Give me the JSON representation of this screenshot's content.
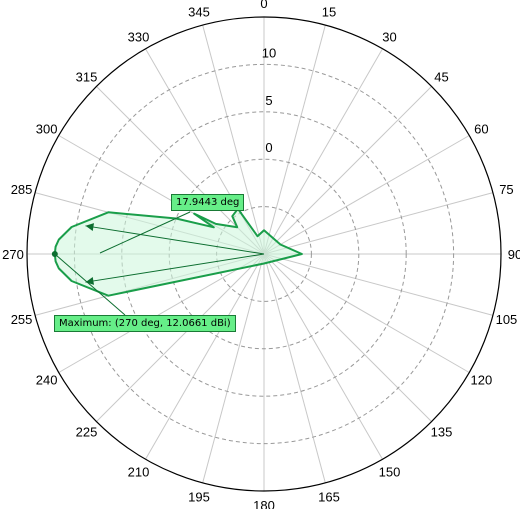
{
  "chart_data": {
    "type": "polar",
    "angle_ticks": [
      "0",
      "15",
      "30",
      "45",
      "60",
      "75",
      "90",
      "105",
      "120",
      "135",
      "150",
      "165",
      "180",
      "195",
      "210",
      "225",
      "240",
      "255",
      "270",
      "285",
      "300",
      "315",
      "330",
      "345"
    ],
    "ring_labels": [
      "0",
      "5",
      "10"
    ],
    "rlim": [
      -10,
      15
    ],
    "units": "dBi",
    "series": [
      {
        "theta": [
          0,
          60,
          90,
          180,
          255,
          262,
          266,
          268,
          270,
          272,
          274,
          278,
          285,
          292,
          298,
          300,
          302,
          315,
          320,
          330,
          340,
          360
        ],
        "r": [
          -7.5,
          -8,
          -6,
          -9,
          7,
          10.5,
          11.7,
          12.0,
          12.0661,
          12.0,
          11.7,
          10.5,
          7,
          0,
          -4,
          -1.5,
          -4,
          -6,
          -4.8,
          -4.5,
          -8,
          -7.5
        ]
      }
    ],
    "maximum_label": "Maximum: (270 deg, 12.0661 dBi)",
    "beamwidth_label": "17.9443 deg",
    "beamwidth_deg": 17.9443,
    "colors": {
      "trace": "#1a9e4a",
      "fill": "#ccf5da",
      "callout": "#66ee88",
      "grid": "#c8c8c8",
      "ring_dash": "#999999"
    }
  }
}
